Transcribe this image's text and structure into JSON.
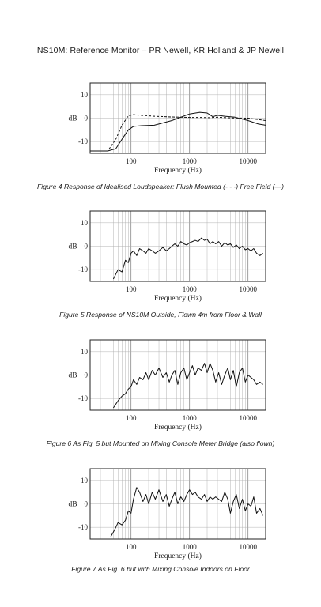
{
  "header": {
    "title": "NS10M: Reference Monitor – PR Newell, KR Holland & JP Newell"
  },
  "chart_data": [
    {
      "type": "line",
      "xlabel": "Frequency (Hz)",
      "ylabel": "dB",
      "x_scale": "log",
      "xlim": [
        20,
        20000
      ],
      "ylim": [
        -15,
        15
      ],
      "x_ticks": [
        100,
        1000,
        10000
      ],
      "x_tick_labels": [
        "100",
        "1000",
        "10000"
      ],
      "y_ticks": [
        10,
        0,
        -10
      ],
      "y_tick_labels": [
        "10",
        "0",
        "-10"
      ],
      "grid": true,
      "caption": "Figure 4  Response of Idealised Loudspeaker: Flush Mounted (- - -) Free Field (—)",
      "series": [
        {
          "name": "Flush Mounted",
          "style": "dashed",
          "x": [
            20,
            40,
            55,
            70,
            90,
            110,
            150,
            250,
            500,
            1000,
            1500,
            2200,
            3000,
            5000,
            10000,
            20000
          ],
          "y": [
            -14,
            -14,
            -9,
            -3,
            1,
            1.5,
            1.2,
            0.8,
            0.5,
            0.3,
            0.3,
            0.2,
            0.4,
            0.1,
            0,
            -1
          ]
        },
        {
          "name": "Free Field",
          "style": "solid",
          "x": [
            20,
            40,
            55,
            70,
            90,
            110,
            150,
            250,
            500,
            1000,
            1500,
            2000,
            2500,
            3000,
            4000,
            6000,
            10000,
            15000,
            20000
          ],
          "y": [
            -14,
            -14,
            -13,
            -9,
            -5,
            -3.5,
            -3.2,
            -3,
            -1,
            1.8,
            2.5,
            2.2,
            0.6,
            1.2,
            0.8,
            0.4,
            -1,
            -2.5,
            -3
          ]
        }
      ]
    },
    {
      "type": "line",
      "xlabel": "Frequency (Hz)",
      "ylabel": "dB",
      "x_scale": "log",
      "xlim": [
        20,
        20000
      ],
      "ylim": [
        -15,
        15
      ],
      "x_ticks": [
        100,
        1000,
        10000
      ],
      "x_tick_labels": [
        "100",
        "1000",
        "10000"
      ],
      "y_ticks": [
        10,
        0,
        -10
      ],
      "y_tick_labels": [
        "10",
        "0",
        "-10"
      ],
      "grid": true,
      "caption": "Figure 5  Response of NS10M Outside, Flown 4m from Floor & Wall",
      "series": [
        {
          "x": [
            50,
            60,
            70,
            80,
            90,
            100,
            110,
            125,
            140,
            160,
            180,
            200,
            230,
            260,
            300,
            350,
            400,
            450,
            500,
            560,
            630,
            710,
            800,
            900,
            1000,
            1120,
            1250,
            1400,
            1600,
            1800,
            2000,
            2240,
            2500,
            2800,
            3150,
            3550,
            4000,
            4500,
            5000,
            5600,
            6300,
            7100,
            8000,
            9000,
            10000,
            11200,
            12500,
            14000,
            16000,
            18000
          ],
          "y": [
            -14,
            -10,
            -11,
            -6,
            -7,
            -3,
            -2,
            -4,
            -1,
            -2,
            -3,
            -1,
            -2,
            -3,
            -2,
            -0.5,
            -2,
            -1,
            0,
            1,
            0,
            2,
            1,
            0.5,
            1.5,
            2,
            2.5,
            2,
            3.5,
            2.5,
            3,
            1,
            2,
            1,
            2,
            0,
            1.5,
            0.5,
            1,
            -0.5,
            0.5,
            -1,
            0,
            -1.5,
            -1,
            -2,
            -1,
            -3,
            -4,
            -3
          ]
        }
      ]
    },
    {
      "type": "line",
      "xlabel": "Frequency (Hz)",
      "ylabel": "dB",
      "x_scale": "log",
      "xlim": [
        20,
        20000
      ],
      "ylim": [
        -15,
        15
      ],
      "x_ticks": [
        100,
        1000,
        10000
      ],
      "x_tick_labels": [
        "100",
        "1000",
        "10000"
      ],
      "y_ticks": [
        10,
        0,
        -10
      ],
      "y_tick_labels": [
        "10",
        "0",
        "-10"
      ],
      "grid": true,
      "caption": "Figure 6  As Fig. 5 but Mounted on Mixing Console Meter Bridge (also flown)",
      "series": [
        {
          "x": [
            50,
            60,
            70,
            80,
            90,
            100,
            110,
            125,
            140,
            160,
            180,
            200,
            230,
            260,
            300,
            350,
            400,
            450,
            500,
            560,
            630,
            710,
            800,
            900,
            1000,
            1120,
            1250,
            1400,
            1600,
            1800,
            2000,
            2240,
            2500,
            2800,
            3150,
            3550,
            4000,
            4500,
            5000,
            5600,
            6300,
            7100,
            8000,
            9000,
            10000,
            11200,
            12500,
            14000,
            16000,
            18000
          ],
          "y": [
            -14,
            -11,
            -9,
            -8,
            -6,
            -5,
            -2,
            -4,
            -1,
            -2,
            1,
            -2,
            2,
            0,
            3,
            -1,
            1,
            -3,
            0,
            2,
            -4,
            1,
            3,
            -2,
            1,
            4,
            0,
            3,
            2,
            5,
            1,
            5,
            2,
            -3,
            1,
            -4,
            0,
            3,
            -2,
            2,
            -5,
            1,
            3,
            -3,
            0,
            -1,
            -2,
            -4,
            -3,
            -4
          ]
        }
      ]
    },
    {
      "type": "line",
      "xlabel": "Frequency (Hz)",
      "ylabel": "dB",
      "x_scale": "log",
      "xlim": [
        20,
        20000
      ],
      "ylim": [
        -15,
        15
      ],
      "x_ticks": [
        100,
        1000,
        10000
      ],
      "x_tick_labels": [
        "100",
        "1000",
        "10000"
      ],
      "y_ticks": [
        10,
        0,
        -10
      ],
      "y_tick_labels": [
        "10",
        "0",
        "-10"
      ],
      "grid": true,
      "caption": "Figure 7  As Fig. 6 but with Mixing Console Indoors on Floor",
      "series": [
        {
          "x": [
            45,
            50,
            55,
            60,
            70,
            80,
            90,
            100,
            110,
            125,
            140,
            160,
            180,
            200,
            230,
            260,
            300,
            350,
            400,
            450,
            500,
            560,
            630,
            710,
            800,
            900,
            1000,
            1120,
            1250,
            1400,
            1600,
            1800,
            2000,
            2240,
            2500,
            2800,
            3150,
            3550,
            4000,
            4500,
            5000,
            5600,
            6300,
            7100,
            8000,
            9000,
            10000,
            11200,
            12500,
            14000,
            16000,
            18000
          ],
          "y": [
            -14,
            -12,
            -10,
            -8,
            -9,
            -7,
            -3,
            -4,
            2,
            7,
            5,
            1,
            4,
            0,
            5,
            2,
            6,
            1,
            4,
            -1,
            2,
            5,
            0,
            3,
            1,
            4,
            6,
            4,
            5,
            3,
            2,
            4,
            1,
            3,
            2,
            3,
            2,
            1,
            5,
            2,
            -4,
            1,
            4,
            -2,
            2,
            -3,
            0,
            -1,
            3,
            -4,
            -2,
            -5
          ]
        }
      ]
    }
  ]
}
